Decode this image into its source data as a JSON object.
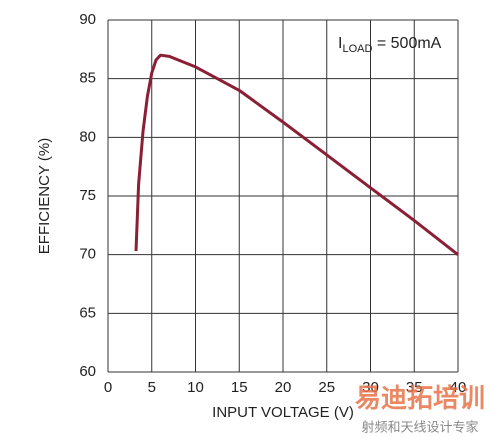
{
  "chart_data": {
    "type": "line",
    "annotation": {
      "main": "I",
      "sub": "LOAD",
      "rest": " = 500mA"
    },
    "xlabel": "INPUT VOLTAGE (V)",
    "ylabel": "EFFICIENCY (%)",
    "x": [
      3.2,
      3.5,
      4,
      4.5,
      5,
      5.5,
      6,
      7,
      8,
      10,
      12,
      15,
      20,
      25,
      30,
      35,
      40
    ],
    "values": [
      70.3,
      76,
      80.5,
      83.5,
      85.5,
      86.6,
      87,
      86.9,
      86.6,
      86,
      85.2,
      84,
      81.3,
      78.5,
      75.7,
      72.9,
      70
    ],
    "color": "#8a1f35",
    "xlim": [
      0,
      40
    ],
    "xticks": [
      0,
      5,
      10,
      15,
      20,
      25,
      30,
      35,
      40
    ],
    "ylim": [
      60,
      90
    ],
    "yticks": [
      60,
      65,
      70,
      75,
      80,
      85,
      90
    ],
    "grid": true
  },
  "watermark": {
    "brand": "易迪拓培训",
    "slogan": "射频和天线设计专家"
  }
}
